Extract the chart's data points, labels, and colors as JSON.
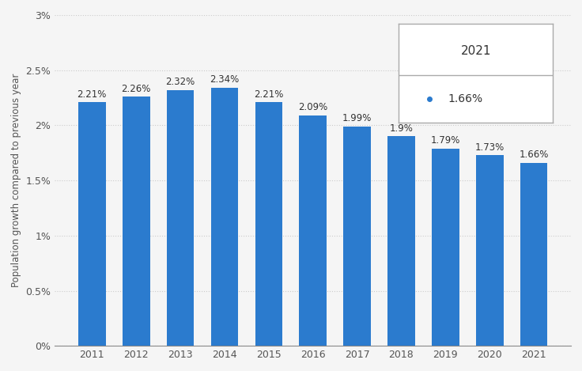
{
  "years": [
    2011,
    2012,
    2013,
    2014,
    2015,
    2016,
    2017,
    2018,
    2019,
    2020,
    2021
  ],
  "values": [
    2.21,
    2.26,
    2.32,
    2.34,
    2.21,
    2.09,
    1.99,
    1.9,
    1.79,
    1.73,
    1.66
  ],
  "labels": [
    "2.21%",
    "2.26%",
    "2.32%",
    "2.34%",
    "2.21%",
    "2.09%",
    "1.99%",
    "1.9%",
    "1.79%",
    "1.73%",
    "1.66%"
  ],
  "bar_color": "#2b7bce",
  "ylabel": "Population growth compared to previous year",
  "ylim": [
    0,
    3.0
  ],
  "yticks": [
    0,
    0.5,
    1.0,
    1.5,
    2.0,
    2.5,
    3.0
  ],
  "ytick_labels": [
    "0%",
    "0.5%",
    "1%",
    "1.5%",
    "2%",
    "2.5%",
    "3%"
  ],
  "legend_year": "2021",
  "legend_value": "1.66%",
  "background_color": "#f5f5f5",
  "plot_bg_color": "#f5f5f5",
  "grid_color": "#cccccc",
  "bar_width": 0.62,
  "label_fontsize": 8.5,
  "axis_fontsize": 9,
  "ylabel_fontsize": 8.5
}
